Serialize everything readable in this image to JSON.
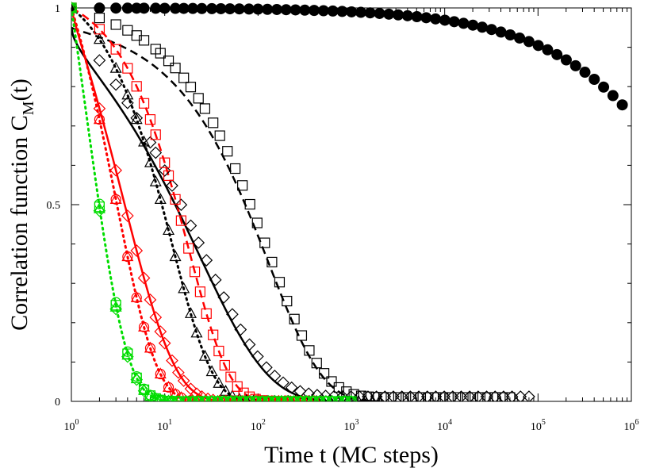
{
  "chart_data": {
    "type": "scatter",
    "title": "",
    "xlabel": "Time t (MC steps)",
    "ylabel": {
      "main": "Correlation function C",
      "sub": "M",
      "suffix": "(t)"
    },
    "xscale": "log",
    "xlim": [
      1,
      1000000
    ],
    "ylim": [
      0,
      1
    ],
    "grid": false,
    "legend": "none",
    "x_ticks": [
      {
        "base": "10",
        "exp": "0",
        "value": 1
      },
      {
        "base": "10",
        "exp": "1",
        "value": 10
      },
      {
        "base": "10",
        "exp": "2",
        "value": 100
      },
      {
        "base": "10",
        "exp": "3",
        "value": 1000
      },
      {
        "base": "10",
        "exp": "4",
        "value": 10000
      },
      {
        "base": "10",
        "exp": "5",
        "value": 100000
      },
      {
        "base": "10",
        "exp": "6",
        "value": 1000000
      }
    ],
    "y_ticks": [
      {
        "label": "0",
        "value": 0
      },
      {
        "label": "0.5",
        "value": 0.5
      },
      {
        "label": "1",
        "value": 1
      }
    ],
    "colors": {
      "black": "#000000",
      "red": "#ff0000",
      "green": "#00dd00"
    },
    "series": [
      {
        "color": "black",
        "marker": "filled-circle",
        "x_range": [
          1,
          800000
        ],
        "n": 60,
        "model": {
          "type": "stretched",
          "tau": 10000000.0,
          "beta": 0.5,
          "amp": 1.0,
          "floor": 0.0
        }
      },
      {
        "color": "black",
        "marker": "square",
        "x_range": [
          1,
          50000
        ],
        "n": 60,
        "model": {
          "type": "stretched",
          "tau": 130,
          "beta": 0.75,
          "amp": 1.0,
          "floor": 0.01
        }
      },
      {
        "color": "black",
        "marker": "diamond",
        "x_range": [
          1,
          80000
        ],
        "n": 55,
        "model": {
          "type": "stretched",
          "tau": 25,
          "beta": 0.6,
          "amp": 1.0,
          "floor": 0.012
        }
      },
      {
        "color": "black",
        "marker": "triangle",
        "x_range": [
          1,
          2000
        ],
        "n": 45,
        "model": {
          "type": "stretched",
          "tau": 12,
          "beta": 1.0,
          "amp": 1.0,
          "floor": 0.0
        }
      },
      {
        "color": "red",
        "marker": "square",
        "x_range": [
          1,
          500
        ],
        "n": 42,
        "model": {
          "type": "stretched",
          "tau": 18,
          "beta": 1.0,
          "amp": 1.0,
          "floor": 0.0
        }
      },
      {
        "color": "red",
        "marker": "diamond",
        "x_range": [
          1,
          400
        ],
        "n": 42,
        "model": {
          "type": "stretched",
          "tau": 4.2,
          "beta": 0.85,
          "amp": 1.0,
          "floor": 0.0
        }
      },
      {
        "color": "red",
        "marker": "circle",
        "x_range": [
          1,
          200
        ],
        "n": 30,
        "model": {
          "type": "stretched",
          "tau": 3.0,
          "beta": 1.0,
          "amp": 1.0,
          "floor": 0.0
        }
      },
      {
        "color": "red",
        "marker": "triangle",
        "x_range": [
          1,
          200
        ],
        "n": 30,
        "model": {
          "type": "stretched",
          "tau": 3.0,
          "beta": 1.0,
          "amp": 1.0,
          "floor": 0.0
        }
      },
      {
        "color": "green",
        "marker": "circle",
        "x_range": [
          1,
          1000
        ],
        "n": 45,
        "model": {
          "type": "stretched",
          "tau": 1.45,
          "beta": 1.0,
          "amp": 1.0,
          "floor": 0.0
        }
      },
      {
        "color": "green",
        "marker": "square",
        "x_range": [
          1,
          1000
        ],
        "n": 45,
        "model": {
          "type": "stretched",
          "tau": 1.42,
          "beta": 1.0,
          "amp": 1.0,
          "floor": 0.0
        }
      },
      {
        "color": "green",
        "marker": "triangle",
        "x_range": [
          1,
          1000
        ],
        "n": 45,
        "model": {
          "type": "stretched",
          "tau": 1.4,
          "beta": 1.0,
          "amp": 1.0,
          "floor": 0.0
        }
      },
      {
        "color": "green",
        "marker": "diamond",
        "x_range": [
          1,
          1000
        ],
        "n": 45,
        "model": {
          "type": "stretched",
          "tau": 1.38,
          "beta": 1.0,
          "amp": 1.0,
          "floor": 0.0
        }
      }
    ],
    "fits": [
      {
        "color": "black",
        "dash": "dashed",
        "x_range": [
          1,
          2000
        ],
        "model": {
          "type": "stretched",
          "tau": 130,
          "beta": 0.75,
          "amp": 0.95,
          "floor": 0.0
        }
      },
      {
        "color": "black",
        "dash": "solid",
        "x_range": [
          1,
          2000
        ],
        "model": {
          "type": "stretched",
          "tau": 25,
          "beta": 0.6,
          "amp": 0.95,
          "floor": 0.0
        }
      },
      {
        "color": "black",
        "dash": "dotted",
        "x_range": [
          1,
          2000
        ],
        "model": {
          "type": "stretched",
          "tau": 12,
          "beta": 1.0,
          "amp": 1.0,
          "floor": 0.0
        }
      },
      {
        "color": "red",
        "dash": "dashed",
        "x_range": [
          1,
          300
        ],
        "model": {
          "type": "stretched",
          "tau": 18,
          "beta": 1.0,
          "amp": 1.0,
          "floor": 0.0
        }
      },
      {
        "color": "red",
        "dash": "solid",
        "x_range": [
          1,
          300
        ],
        "model": {
          "type": "stretched",
          "tau": 4.2,
          "beta": 0.85,
          "amp": 1.0,
          "floor": 0.0
        }
      },
      {
        "color": "red",
        "dash": "dotted",
        "x_range": [
          1,
          300
        ],
        "model": {
          "type": "stretched",
          "tau": 3.0,
          "beta": 1.0,
          "amp": 1.0,
          "floor": 0.0
        }
      },
      {
        "color": "green",
        "dash": "dotted",
        "x_range": [
          1,
          50
        ],
        "model": {
          "type": "stretched",
          "tau": 1.42,
          "beta": 1.0,
          "amp": 1.0,
          "floor": 0.0
        }
      }
    ]
  }
}
